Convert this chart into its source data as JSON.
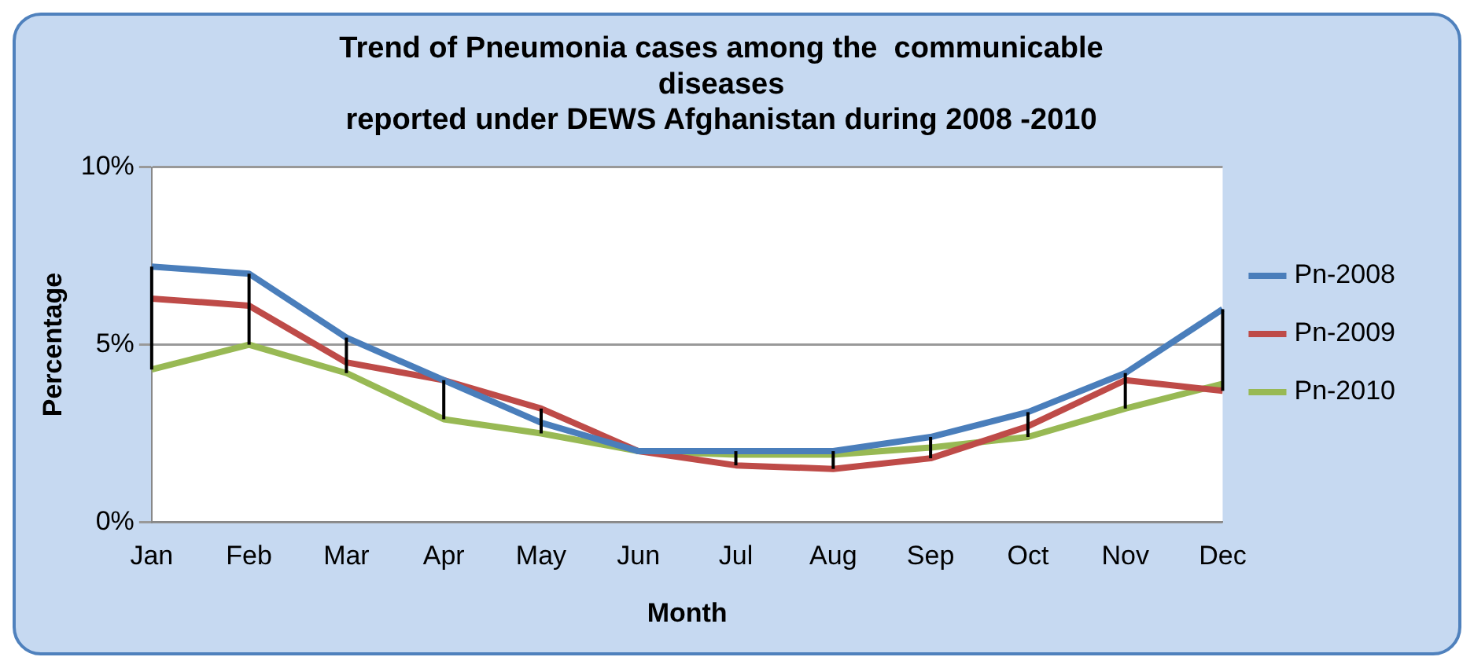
{
  "chart_data": {
    "type": "line",
    "title": "Trend of Pneumonia cases among the  communicable\ndiseases\nreported under DEWS Afghanistan during 2008 -2010",
    "xlabel": "Month",
    "ylabel": "Percentage",
    "categories": [
      "Jan",
      "Feb",
      "Mar",
      "Apr",
      "May",
      "Jun",
      "Jul",
      "Aug",
      "Sep",
      "Oct",
      "Nov",
      "Dec"
    ],
    "series": [
      {
        "name": "Pn-2008",
        "color": "#4a7ebb",
        "values": [
          7.2,
          7.0,
          5.2,
          4.0,
          2.8,
          2.0,
          2.0,
          2.0,
          2.4,
          3.1,
          4.2,
          6.0
        ],
        "errors": [
          [
            4.3,
            7.2
          ],
          [
            5.0,
            7.0
          ],
          [
            4.2,
            5.2
          ],
          [
            2.9,
            4.0
          ],
          [
            2.5,
            3.2
          ],
          null,
          [
            1.6,
            2.0
          ],
          [
            1.5,
            2.0
          ],
          [
            1.8,
            2.4
          ],
          [
            2.4,
            3.1
          ],
          [
            3.2,
            4.2
          ],
          [
            3.7,
            6.0
          ]
        ]
      },
      {
        "name": "Pn-2009",
        "color": "#be4b48",
        "values": [
          6.3,
          6.1,
          4.5,
          4.0,
          3.2,
          2.0,
          1.6,
          1.5,
          1.8,
          2.7,
          4.0,
          3.7
        ]
      },
      {
        "name": "Pn-2010",
        "color": "#98b954",
        "values": [
          4.3,
          5.0,
          4.2,
          2.9,
          2.5,
          2.0,
          1.9,
          1.9,
          2.1,
          2.4,
          3.2,
          3.9
        ]
      }
    ],
    "ylim": [
      0,
      10
    ],
    "yticks": [
      {
        "value": 0,
        "label": "0%"
      },
      {
        "value": 5,
        "label": "5%"
      },
      {
        "value": 10,
        "label": "10%"
      }
    ],
    "grid": "y",
    "legend": "right",
    "marker": "none",
    "line_style": "solid"
  }
}
